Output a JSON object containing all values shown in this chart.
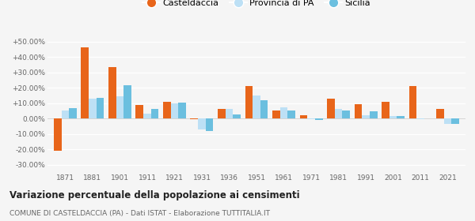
{
  "years": [
    1871,
    1881,
    1901,
    1911,
    1921,
    1931,
    1936,
    1951,
    1961,
    1971,
    1981,
    1991,
    2001,
    2011,
    2021
  ],
  "casteldaccia": [
    -21.0,
    46.5,
    33.5,
    9.0,
    11.0,
    -0.5,
    6.5,
    21.0,
    5.5,
    2.0,
    13.0,
    9.5,
    11.0,
    21.0,
    6.5
  ],
  "provincia_pa": [
    5.5,
    13.0,
    14.5,
    3.0,
    10.0,
    -7.0,
    6.5,
    15.0,
    7.5,
    -0.5,
    6.5,
    2.0,
    1.5,
    -0.5,
    -3.5
  ],
  "sicilia": [
    7.0,
    13.5,
    21.5,
    6.5,
    10.5,
    -8.0,
    2.5,
    12.0,
    5.5,
    -1.0,
    5.0,
    4.5,
    1.5,
    0.0,
    -3.5
  ],
  "color_casteldaccia": "#E8651A",
  "color_provincia": "#BDE0F5",
  "color_sicilia": "#6BBFDF",
  "title": "Variazione percentuale della popolazione ai censimenti",
  "subtitle": "COMUNE DI CASTELDACCIA (PA) - Dati ISTAT - Elaborazione TUTTITALIA.IT",
  "legend_labels": [
    "Casteldaccia",
    "Provincia di PA",
    "Sicilia"
  ],
  "yticks": [
    -30,
    -20,
    -10,
    0,
    10,
    20,
    30,
    40,
    50
  ],
  "ylim": [
    -35,
    57
  ],
  "bar_width": 0.28,
  "bg_color": "#f5f5f5"
}
